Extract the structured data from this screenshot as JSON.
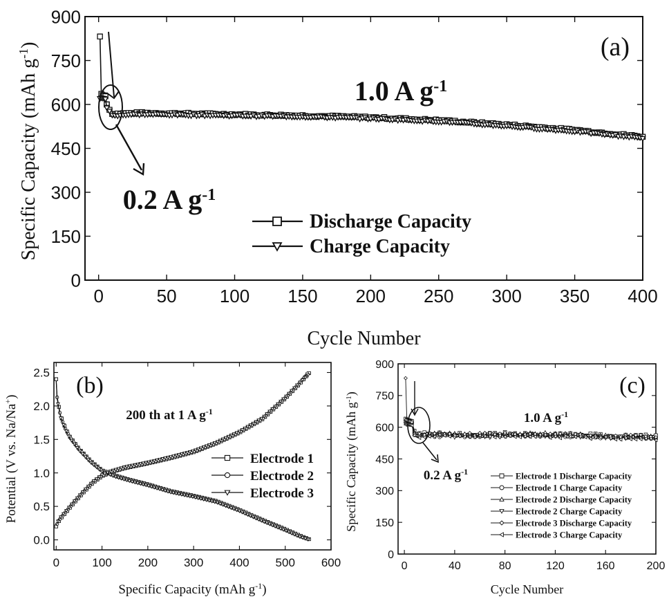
{
  "chart_data": [
    {
      "panel": "(a)",
      "type": "line",
      "marker_style": "open markers",
      "xlabel": "Cycle Number",
      "ylabel": "Specific Capacity (mAh g⁻¹)",
      "xlim": [
        -10,
        400
      ],
      "ylim": [
        0,
        900
      ],
      "xticks": [
        0,
        50,
        100,
        150,
        200,
        250,
        300,
        350,
        400
      ],
      "yticks": [
        0,
        150,
        300,
        450,
        600,
        750,
        900
      ],
      "annotations": [
        "1.0 A g⁻¹",
        "0.2 A g⁻¹"
      ],
      "legend": "center-left",
      "series": [
        {
          "name": "Discharge Capacity",
          "marker": "square",
          "x": [
            1,
            2,
            3,
            4,
            5,
            6,
            10,
            30,
            50,
            100,
            150,
            200,
            250,
            300,
            350,
            400
          ],
          "y": [
            832,
            636,
            632,
            630,
            628,
            600,
            568,
            571,
            570,
            566,
            562,
            556,
            546,
            531,
            513,
            490
          ]
        },
        {
          "name": "Charge Capacity",
          "marker": "triangle-down",
          "x": [
            1,
            2,
            3,
            4,
            5,
            6,
            10,
            30,
            50,
            100,
            150,
            200,
            250,
            300,
            350,
            400
          ],
          "y": [
            620,
            622,
            621,
            620,
            618,
            590,
            562,
            566,
            565,
            562,
            558,
            552,
            542,
            526,
            508,
            485
          ]
        }
      ]
    },
    {
      "panel": "(b)",
      "type": "line",
      "xlabel": "Specific Capacity (mAh g⁻¹)",
      "ylabel": "Potential (V vs. Na/Na⁺)",
      "xlim": [
        -5,
        600
      ],
      "ylim": [
        -0.15,
        2.65
      ],
      "xticks": [
        0,
        100,
        200,
        300,
        400,
        500,
        600
      ],
      "yticks": [
        0.0,
        0.5,
        1.0,
        1.5,
        2.0,
        2.5
      ],
      "annotations": [
        "200 th at 1 A g⁻¹"
      ],
      "legend": "right",
      "series": [
        {
          "name": "Electrode 1",
          "marker": "square",
          "discharge": {
            "x": [
              0,
              2,
              5,
              10,
              20,
              30,
              50,
              75,
              100,
              130,
              160,
              200,
              250,
              300,
              350,
              400,
              450,
              500,
              530,
              552
            ],
            "y": [
              2.4,
              2.15,
              2.02,
              1.85,
              1.67,
              1.54,
              1.36,
              1.18,
              1.04,
              0.96,
              0.9,
              0.83,
              0.73,
              0.66,
              0.58,
              0.45,
              0.3,
              0.16,
              0.07,
              0.01
            ]
          },
          "charge": {
            "x": [
              0,
              5,
              10,
              20,
              40,
              60,
              80,
              100,
              120,
              150,
              200,
              250,
              300,
              350,
              400,
              450,
              500,
              530,
              552
            ],
            "y": [
              0.2,
              0.27,
              0.32,
              0.4,
              0.56,
              0.71,
              0.85,
              0.95,
              1.01,
              1.07,
              1.14,
              1.22,
              1.31,
              1.44,
              1.6,
              1.8,
              2.11,
              2.32,
              2.49
            ]
          }
        },
        {
          "name": "Electrode 2",
          "marker": "circle",
          "discharge": {
            "x": [
              0,
              2,
              5,
              10,
              20,
              30,
              50,
              75,
              100,
              130,
              160,
              200,
              250,
              300,
              350,
              400,
              450,
              500,
              530,
              550
            ],
            "y": [
              2.38,
              2.13,
              2.0,
              1.83,
              1.66,
              1.53,
              1.35,
              1.17,
              1.03,
              0.95,
              0.89,
              0.82,
              0.72,
              0.65,
              0.57,
              0.44,
              0.29,
              0.15,
              0.06,
              0.01
            ]
          },
          "charge": {
            "x": [
              0,
              5,
              10,
              20,
              40,
              60,
              80,
              100,
              120,
              150,
              200,
              250,
              300,
              350,
              400,
              450,
              500,
              530,
              550
            ],
            "y": [
              0.21,
              0.28,
              0.33,
              0.41,
              0.57,
              0.72,
              0.86,
              0.96,
              1.02,
              1.08,
              1.15,
              1.23,
              1.32,
              1.45,
              1.61,
              1.81,
              2.12,
              2.33,
              2.5
            ]
          }
        },
        {
          "name": "Electrode 3",
          "marker": "triangle-down",
          "discharge": {
            "x": [
              0,
              2,
              5,
              10,
              20,
              30,
              50,
              75,
              100,
              130,
              160,
              200,
              250,
              300,
              350,
              400,
              450,
              500,
              530,
              553
            ],
            "y": [
              2.36,
              2.11,
              1.99,
              1.82,
              1.65,
              1.52,
              1.34,
              1.16,
              1.02,
              0.94,
              0.88,
              0.81,
              0.71,
              0.64,
              0.56,
              0.43,
              0.28,
              0.14,
              0.05,
              0.0
            ]
          },
          "charge": {
            "x": [
              0,
              5,
              10,
              20,
              40,
              60,
              80,
              100,
              120,
              150,
              200,
              250,
              300,
              350,
              400,
              450,
              500,
              530,
              553
            ],
            "y": [
              0.22,
              0.29,
              0.34,
              0.42,
              0.58,
              0.73,
              0.87,
              0.97,
              1.03,
              1.09,
              1.16,
              1.24,
              1.33,
              1.46,
              1.62,
              1.82,
              2.13,
              2.34,
              2.48
            ]
          }
        }
      ]
    },
    {
      "panel": "(c)",
      "type": "line",
      "marker_style": "open markers",
      "xlabel": "Cycle Number",
      "ylabel": "Specific Capacity (mAh g⁻¹)",
      "xlim": [
        -5,
        200
      ],
      "ylim": [
        0,
        900
      ],
      "xticks": [
        0,
        40,
        80,
        120,
        160,
        200
      ],
      "yticks": [
        0,
        150,
        300,
        450,
        600,
        750,
        900
      ],
      "annotations": [
        "1.0 A g⁻¹",
        "0.2 A g⁻¹"
      ],
      "legend": "bottom-right",
      "series": [
        {
          "name": "Electrode 1 Discharge Capacity",
          "marker": "square",
          "x": [
            1,
            2,
            3,
            4,
            5,
            6,
            8,
            10,
            20,
            40,
            60,
            80,
            100,
            120,
            140,
            160,
            180,
            200
          ],
          "y": [
            640,
            636,
            634,
            632,
            630,
            628,
            580,
            568,
            570,
            568,
            566,
            570,
            568,
            566,
            564,
            562,
            560,
            558
          ]
        },
        {
          "name": "Electrode 1 Charge Capacity",
          "marker": "circle",
          "x": [
            1,
            2,
            3,
            4,
            5,
            6,
            8,
            10,
            20,
            40,
            60,
            80,
            100,
            120,
            140,
            160,
            180,
            200
          ],
          "y": [
            622,
            620,
            618,
            617,
            616,
            614,
            566,
            556,
            560,
            560,
            558,
            562,
            560,
            558,
            556,
            554,
            552,
            550
          ]
        },
        {
          "name": "Electrode 2 Discharge Capacity",
          "marker": "triangle-up",
          "x": [
            1,
            2,
            3,
            4,
            5,
            6,
            8,
            10,
            20,
            40,
            60,
            80,
            100,
            120,
            140,
            160,
            180,
            200
          ],
          "y": [
            636,
            634,
            632,
            630,
            628,
            626,
            582,
            570,
            572,
            566,
            568,
            566,
            572,
            568,
            566,
            560,
            558,
            556
          ]
        },
        {
          "name": "Electrode 2 Charge Capacity",
          "marker": "triangle-down",
          "x": [
            1,
            2,
            3,
            4,
            5,
            6,
            8,
            10,
            20,
            40,
            60,
            80,
            100,
            120,
            140,
            160,
            180,
            200
          ],
          "y": [
            618,
            617,
            616,
            615,
            614,
            612,
            568,
            558,
            562,
            556,
            558,
            556,
            562,
            558,
            556,
            552,
            550,
            548
          ]
        },
        {
          "name": "Electrode 3 Discharge Capacity",
          "marker": "diamond",
          "x": [
            1,
            2,
            3,
            4,
            5,
            6,
            8,
            10,
            20,
            40,
            60,
            80,
            100,
            120,
            140,
            160,
            180,
            200
          ],
          "y": [
            832,
            632,
            630,
            628,
            626,
            624,
            576,
            566,
            568,
            570,
            566,
            568,
            570,
            566,
            562,
            560,
            558,
            556
          ]
        },
        {
          "name": "Electrode 3 Charge Capacity",
          "marker": "triangle-left",
          "x": [
            1,
            2,
            3,
            4,
            5,
            6,
            8,
            10,
            20,
            40,
            60,
            80,
            100,
            120,
            140,
            160,
            180,
            200
          ],
          "y": [
            612,
            614,
            612,
            611,
            610,
            608,
            562,
            554,
            558,
            560,
            556,
            558,
            560,
            556,
            552,
            550,
            548,
            546
          ]
        }
      ]
    }
  ]
}
